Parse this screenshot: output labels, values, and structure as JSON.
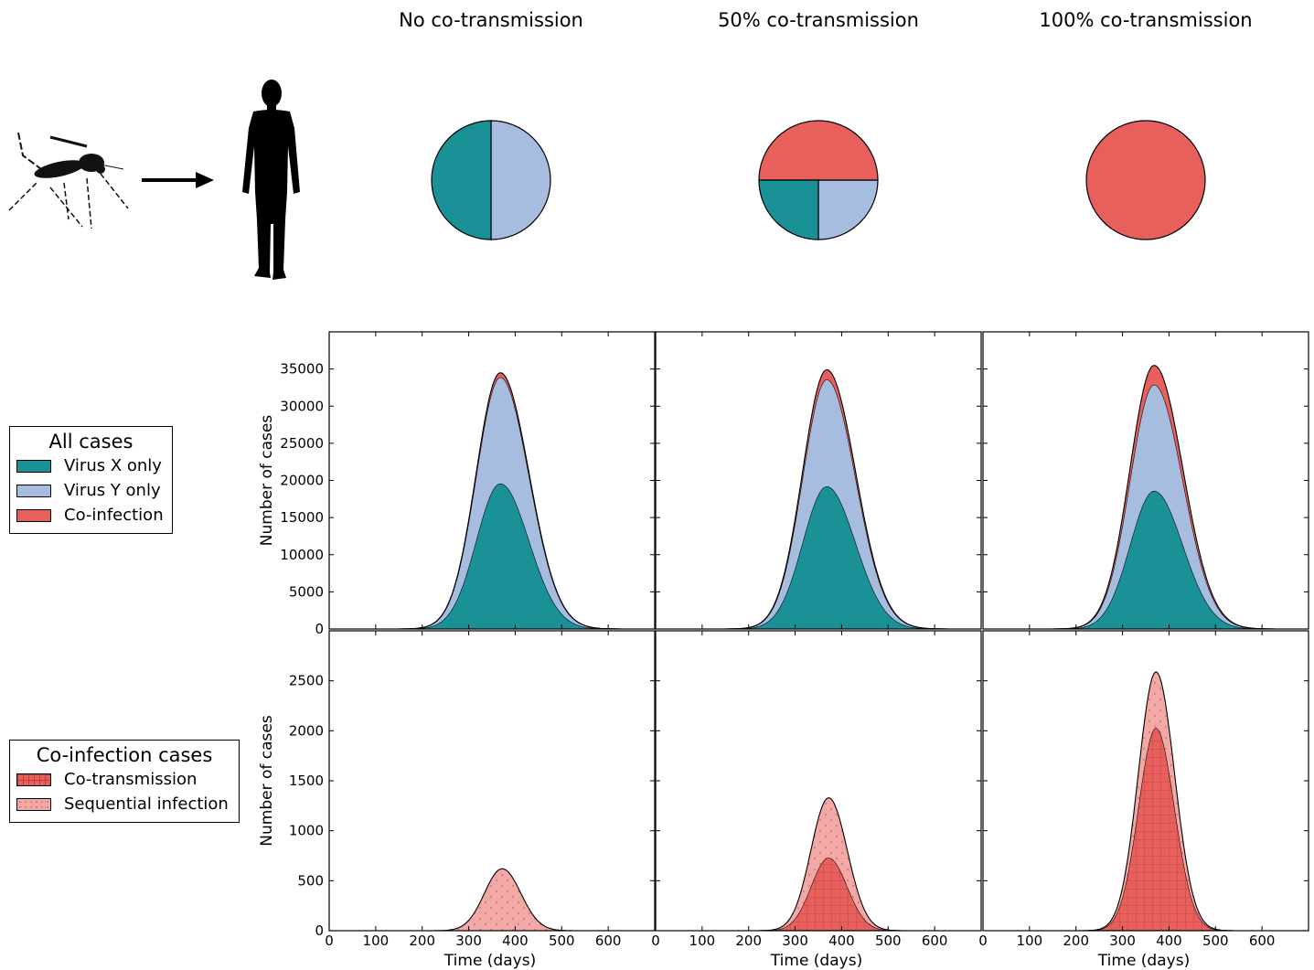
{
  "colors": {
    "virus_x": "#1a9097",
    "virus_y": "#a6bde0",
    "coinfection": "#e8605c",
    "sequential": "#f2a9a6"
  },
  "icons": [
    "mosquito-icon",
    "arrow-right-icon",
    "human-silhouette-icon"
  ],
  "column_titles": [
    "No co-transmission",
    "50% co-transmission",
    "100% co-transmission"
  ],
  "legends": {
    "all_cases": {
      "title": "All cases",
      "items": [
        {
          "label": "Virus X only",
          "color": "#1a9097"
        },
        {
          "label": "Virus Y only",
          "color": "#a6bde0"
        },
        {
          "label": "Co-infection",
          "color": "#e8605c"
        }
      ]
    },
    "coinfection_cases": {
      "title": "Co-infection cases",
      "items": [
        {
          "label": "Co-transmission",
          "color": "#e8605c",
          "hatch": "grid"
        },
        {
          "label": "Sequential infection",
          "color": "#f2a9a6",
          "hatch": "dots"
        }
      ]
    }
  },
  "chart_data": [
    {
      "type": "pie",
      "column": 0,
      "series": [
        {
          "name": "Virus X only",
          "value": 0.5
        },
        {
          "name": "Virus Y only",
          "value": 0.5
        },
        {
          "name": "Co-infection",
          "value": 0.0
        }
      ]
    },
    {
      "type": "pie",
      "column": 1,
      "series": [
        {
          "name": "Virus X only",
          "value": 0.25
        },
        {
          "name": "Virus Y only",
          "value": 0.25
        },
        {
          "name": "Co-infection",
          "value": 0.5
        }
      ]
    },
    {
      "type": "pie",
      "column": 2,
      "series": [
        {
          "name": "Virus X only",
          "value": 0.0
        },
        {
          "name": "Virus Y only",
          "value": 0.0
        },
        {
          "name": "Co-infection",
          "value": 1.0
        }
      ]
    },
    {
      "type": "area",
      "stacked": true,
      "row": "all",
      "column": 0,
      "ylabel": "Number of cases",
      "xlabel": "",
      "xlim": [
        0,
        700
      ],
      "ylim": [
        0,
        40000
      ],
      "xticks": [],
      "yticks": [
        0,
        5000,
        10000,
        15000,
        20000,
        25000,
        30000,
        35000
      ],
      "peak_x": 368,
      "series": [
        {
          "name": "Virus X only",
          "peak": 19600
        },
        {
          "name": "Virus Y only",
          "peak": 14300
        },
        {
          "name": "Co-infection",
          "peak": 600
        }
      ]
    },
    {
      "type": "area",
      "stacked": true,
      "row": "all",
      "column": 1,
      "ylabel": "",
      "xlabel": "",
      "xlim": [
        0,
        700
      ],
      "ylim": [
        0,
        40000
      ],
      "xticks": [],
      "yticks": [],
      "peak_x": 368,
      "series": [
        {
          "name": "Virus X only",
          "peak": 19200
        },
        {
          "name": "Virus Y only",
          "peak": 14400
        },
        {
          "name": "Co-infection",
          "peak": 1300
        }
      ]
    },
    {
      "type": "area",
      "stacked": true,
      "row": "all",
      "column": 2,
      "ylabel": "",
      "xlabel": "",
      "xlim": [
        0,
        700
      ],
      "ylim": [
        0,
        40000
      ],
      "xticks": [],
      "yticks": [],
      "peak_x": 368,
      "series": [
        {
          "name": "Virus X only",
          "peak": 18600
        },
        {
          "name": "Virus Y only",
          "peak": 14300
        },
        {
          "name": "Co-infection",
          "peak": 2600
        }
      ]
    },
    {
      "type": "area",
      "stacked": true,
      "row": "coinfection",
      "column": 0,
      "ylabel": "Number of cases",
      "xlabel": "Time (days)",
      "xlim": [
        0,
        700
      ],
      "ylim": [
        0,
        3000
      ],
      "xticks": [
        0,
        100,
        200,
        300,
        400,
        500,
        600
      ],
      "yticks": [
        0,
        500,
        1000,
        1500,
        2000,
        2500
      ],
      "peak_x": 372,
      "series": [
        {
          "name": "Co-transmission",
          "peak": 0
        },
        {
          "name": "Sequential infection",
          "peak": 620
        }
      ]
    },
    {
      "type": "area",
      "stacked": true,
      "row": "coinfection",
      "column": 1,
      "ylabel": "",
      "xlabel": "Time (days)",
      "xlim": [
        0,
        700
      ],
      "ylim": [
        0,
        3000
      ],
      "xticks": [
        0,
        100,
        200,
        300,
        400,
        500,
        600
      ],
      "yticks": [],
      "peak_x": 372,
      "series": [
        {
          "name": "Co-transmission",
          "peak": 730
        },
        {
          "name": "Sequential infection",
          "peak": 600
        }
      ]
    },
    {
      "type": "area",
      "stacked": true,
      "row": "coinfection",
      "column": 2,
      "ylabel": "",
      "xlabel": "Time (days)",
      "xlim": [
        0,
        700
      ],
      "ylim": [
        0,
        3000
      ],
      "xticks": [
        0,
        100,
        200,
        300,
        400,
        500,
        600
      ],
      "yticks": [],
      "peak_x": 372,
      "series": [
        {
          "name": "Co-transmission",
          "peak": 2030
        },
        {
          "name": "Sequential infection",
          "peak": 560
        }
      ]
    }
  ]
}
